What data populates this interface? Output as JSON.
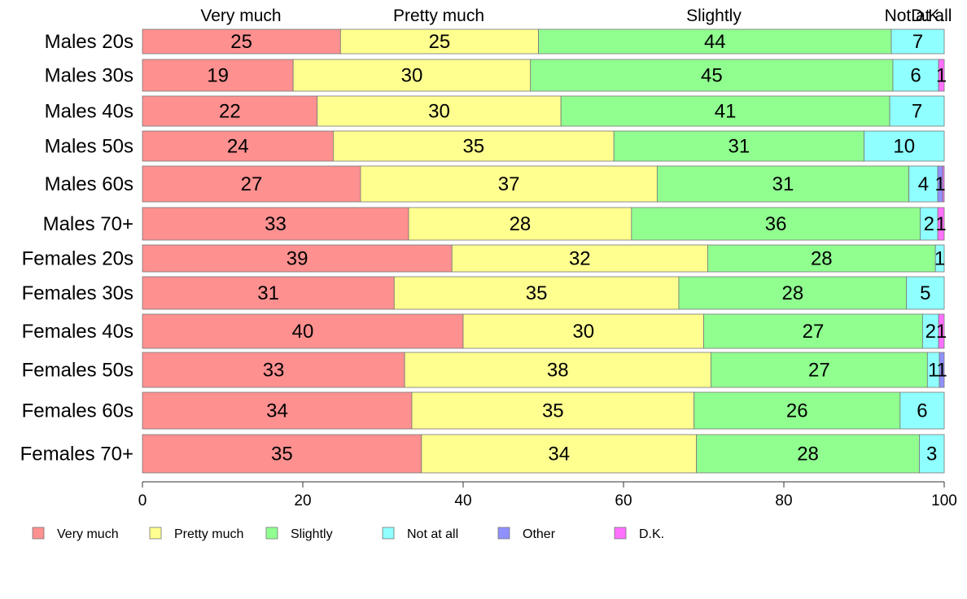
{
  "chart_data": {
    "type": "bar",
    "orientation": "horizontal",
    "stacked": true,
    "categories": [
      "Males 20s",
      "Males 30s",
      "Males 40s",
      "Males 50s",
      "Males 60s",
      "Males 70+",
      "Females 20s",
      "Females 30s",
      "Females 40s",
      "Females 50s",
      "Females 60s",
      "Females 70+"
    ],
    "series": [
      {
        "name": "Very much",
        "color": "#ff9090",
        "values": [
          24.7,
          18.8,
          21.8,
          23.8,
          27.2,
          33.2,
          38.6,
          31.4,
          40.0,
          32.7,
          33.6,
          34.8
        ]
      },
      {
        "name": "Pretty much",
        "color": "#ffff90",
        "values": [
          24.7,
          29.6,
          30.4,
          35.0,
          37.0,
          27.8,
          31.9,
          35.5,
          30.0,
          38.2,
          35.2,
          34.3
        ]
      },
      {
        "name": "Slightly",
        "color": "#90ff90",
        "values": [
          44.0,
          45.2,
          41.0,
          31.2,
          31.4,
          36.0,
          28.4,
          28.4,
          27.3,
          27.0,
          25.7,
          27.8
        ]
      },
      {
        "name": "Not at all",
        "color": "#90ffff",
        "values": [
          6.6,
          5.7,
          6.8,
          10.0,
          3.6,
          2.2,
          1.1,
          4.7,
          2.0,
          1.5,
          5.5,
          3.1
        ]
      },
      {
        "name": "Other",
        "color": "#9090ff",
        "values": [
          0,
          0,
          0,
          0,
          0.6,
          0,
          0,
          0,
          0,
          0.6,
          0,
          0
        ]
      },
      {
        "name": "D.K.",
        "color": "#ff70ff",
        "values": [
          0,
          0.7,
          0,
          0,
          0.2,
          0.8,
          0,
          0,
          0.7,
          0,
          0,
          0
        ]
      }
    ],
    "segment_labels": [
      [
        "25",
        "25",
        "44",
        "7",
        "",
        ""
      ],
      [
        "19",
        "30",
        "45",
        "6",
        "",
        "1"
      ],
      [
        "22",
        "30",
        "41",
        "7",
        "",
        ""
      ],
      [
        "24",
        "35",
        "31",
        "10",
        "",
        ""
      ],
      [
        "27",
        "37",
        "31",
        "4",
        "1",
        ""
      ],
      [
        "33",
        "28",
        "36",
        "2",
        "",
        "1"
      ],
      [
        "39",
        "32",
        "28",
        "1",
        "",
        ""
      ],
      [
        "31",
        "35",
        "28",
        "5",
        "",
        ""
      ],
      [
        "40",
        "30",
        "27",
        "2",
        "",
        "1"
      ],
      [
        "33",
        "38",
        "27",
        "1",
        "1",
        ""
      ],
      [
        "34",
        "35",
        "26",
        "6",
        "",
        ""
      ],
      [
        "35",
        "34",
        "28",
        "3",
        "",
        ""
      ]
    ],
    "column_headers": [
      "Very much",
      "Pretty much",
      "Slightly",
      "Not at all",
      "D.K."
    ],
    "xticks": [
      "0",
      "20",
      "40",
      "60",
      "80",
      "100"
    ],
    "xlim": [
      0,
      100
    ],
    "title": "",
    "xlabel": "",
    "ylabel": "",
    "grid": false,
    "legend": {
      "position": "bottom",
      "entries": [
        "Very much",
        "Pretty much",
        "Slightly",
        "Not at all",
        "Other",
        "D.K."
      ]
    }
  }
}
